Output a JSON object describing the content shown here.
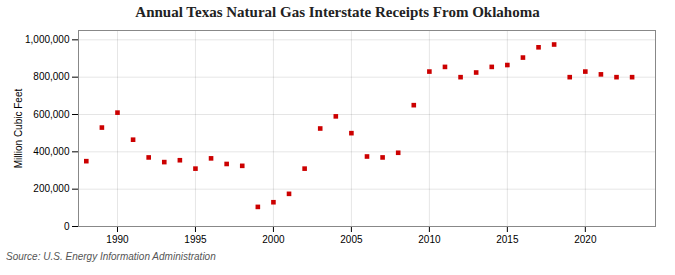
{
  "chart_data": {
    "type": "scatter",
    "title": "Annual Texas Natural Gas Interstate Receipts From Oklahoma",
    "ylabel": "Million Cubic Feet",
    "source": "Source: U.S. Energy Information Administration",
    "x": [
      1988,
      1989,
      1990,
      1991,
      1992,
      1993,
      1994,
      1995,
      1996,
      1997,
      1998,
      1999,
      2000,
      2001,
      2002,
      2003,
      2004,
      2005,
      2006,
      2007,
      2008,
      2009,
      2010,
      2011,
      2012,
      2013,
      2014,
      2015,
      2016,
      2017,
      2018,
      2019,
      2020,
      2021,
      2022,
      2023
    ],
    "values": [
      350000,
      530000,
      610000,
      465000,
      370000,
      345000,
      355000,
      310000,
      365000,
      335000,
      325000,
      105000,
      130000,
      175000,
      310000,
      525000,
      590000,
      500000,
      375000,
      370000,
      395000,
      650000,
      830000,
      855000,
      800000,
      825000,
      855000,
      865000,
      905000,
      960000,
      975000,
      800000,
      830000,
      815000,
      800000,
      800000
    ],
    "color": "#cc0000",
    "marker": "square",
    "xlim": [
      1987.5,
      2024.5
    ],
    "xticks": [
      1990,
      1995,
      2000,
      2005,
      2010,
      2015,
      2020
    ],
    "ylim": [
      0,
      1050000
    ],
    "yticks": [
      0,
      {
        "value": 200000,
        "label": "200,000"
      },
      {
        "value": 400000,
        "label": "400,000"
      },
      {
        "value": 600000,
        "label": "600,000"
      },
      {
        "value": 800000,
        "label": "800,000"
      },
      {
        "value": 1000000,
        "label": "1,000,000"
      }
    ],
    "grid": true
  }
}
